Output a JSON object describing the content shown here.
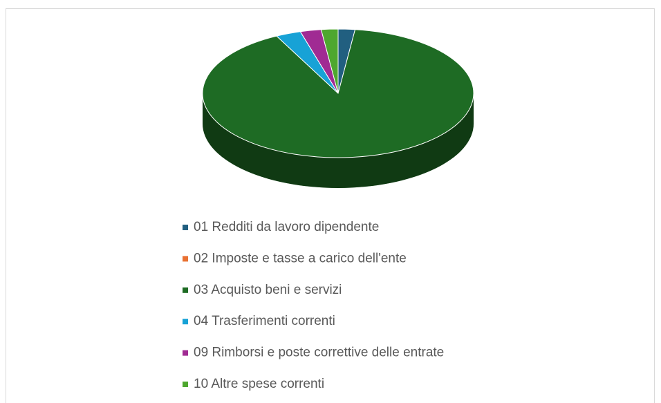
{
  "chart_data": {
    "type": "pie",
    "three_d": true,
    "categories": [
      "01 Redditi da lavoro dipendente",
      "02 Imposte e tasse a carico dell'ente",
      "03 Acquisto beni e servizi",
      "04 Trasferimenti correnti",
      "09 Rimborsi e poste correttive delle entrate",
      "10 Altre spese correnti"
    ],
    "values": [
      2,
      0,
      90.5,
      3,
      2.5,
      2
    ],
    "colors": [
      "#215f80",
      "#e97132",
      "#1e6b24",
      "#17a2d6",
      "#a02b93",
      "#4ea72e"
    ],
    "legend": "bottom"
  }
}
